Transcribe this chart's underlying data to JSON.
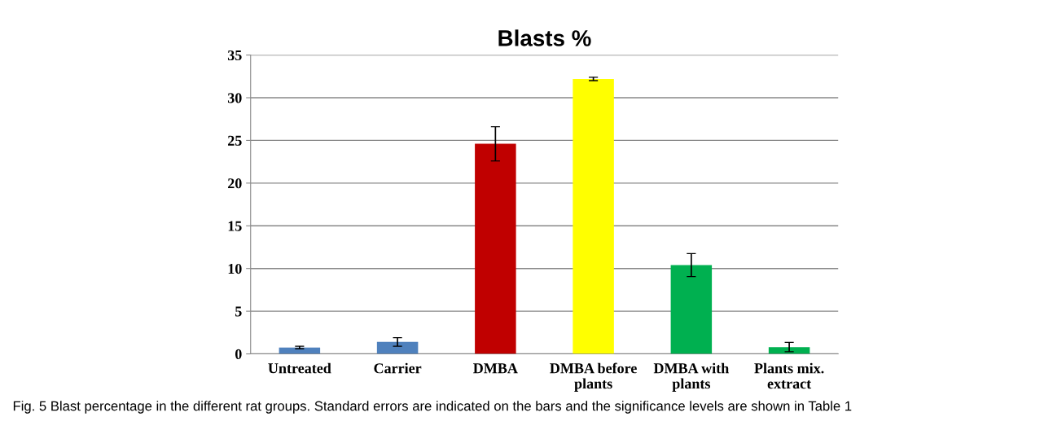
{
  "chart_data": {
    "type": "bar",
    "title": "Blasts %",
    "categories": [
      "Untreated",
      "Carrier",
      "DMBA",
      "DMBA before\nplants",
      "DMBA with\nplants",
      "Plants mix.\nextract"
    ],
    "values": [
      0.75,
      1.4,
      24.6,
      32.2,
      10.4,
      0.8
    ],
    "errors": [
      0.15,
      0.5,
      2.0,
      0.2,
      1.35,
      0.55
    ],
    "colors": [
      "#4f81bd",
      "#4f81bd",
      "#c00000",
      "#ffff00",
      "#00b050",
      "#00b050"
    ],
    "ylim": [
      0,
      35
    ],
    "yticks": [
      0,
      5,
      10,
      15,
      20,
      25,
      30,
      35
    ],
    "grid": "y",
    "annotations": [
      "Fig. 5 Blast percentage in the different rat groups. Standard errors are indicated on the bars and the significance levels are shown in Table 1"
    ]
  }
}
